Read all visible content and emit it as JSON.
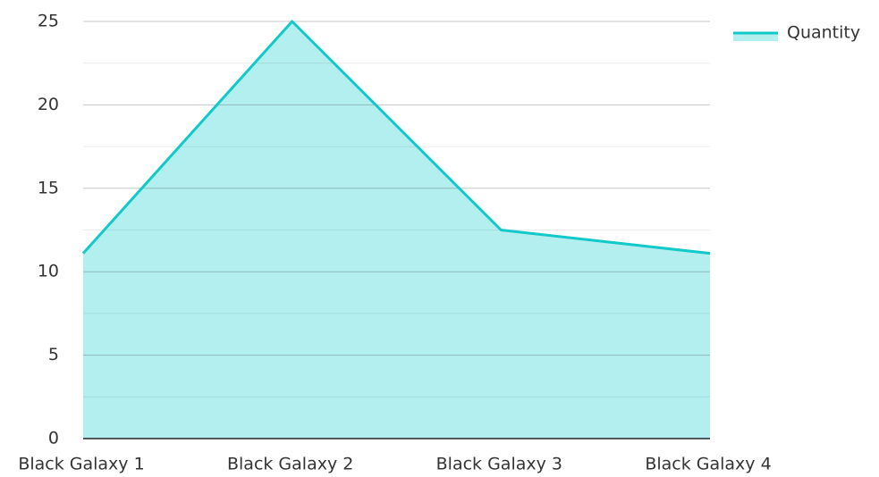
{
  "chart_data": {
    "type": "area",
    "categories": [
      "Black Galaxy 1",
      "Black Galaxy 2",
      "Black Galaxy 3",
      "Black Galaxy 4"
    ],
    "series": [
      {
        "name": "Quantity",
        "color": "#12c9c9",
        "fill": "#b3efef",
        "values": [
          11.1,
          25,
          12.5,
          11.1
        ]
      }
    ],
    "ylim": [
      0,
      25
    ],
    "yticks": [
      0,
      5,
      10,
      15,
      20,
      25
    ],
    "minor_yticks": [
      2.5,
      7.5,
      12.5,
      17.5,
      22.5
    ],
    "grid": true,
    "legend": "top-right"
  }
}
